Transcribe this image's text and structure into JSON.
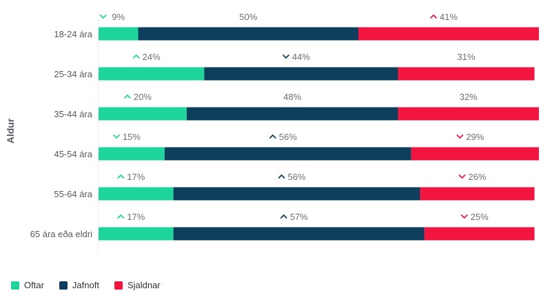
{
  "chart_data": {
    "type": "bar",
    "orientation": "horizontal",
    "stacked": true,
    "percent_stacked": true,
    "ylabel": "Aldur",
    "categories": [
      "18-24 ára",
      "25-34 ára",
      "35-44 ára",
      "45-54 ára",
      "55-64 ára",
      "65 ára eða eldri"
    ],
    "series": [
      {
        "name": "Oftar",
        "color": "#1ed69b",
        "values": [
          9,
          24,
          20,
          15,
          17,
          17
        ],
        "trend": [
          "down",
          "up",
          "up",
          "down",
          "up",
          "up"
        ]
      },
      {
        "name": "Jafnoft",
        "color": "#0d3e5c",
        "values": [
          50,
          44,
          48,
          56,
          56,
          57
        ],
        "trend": [
          "none",
          "down",
          "none",
          "up",
          "up",
          "up"
        ]
      },
      {
        "name": "Sjaldnar",
        "color": "#f2153f",
        "values": [
          41,
          31,
          32,
          29,
          26,
          25
        ],
        "trend": [
          "up",
          "none",
          "none",
          "down",
          "down",
          "down"
        ]
      }
    ],
    "legend": "bottom-left",
    "grid": false
  }
}
